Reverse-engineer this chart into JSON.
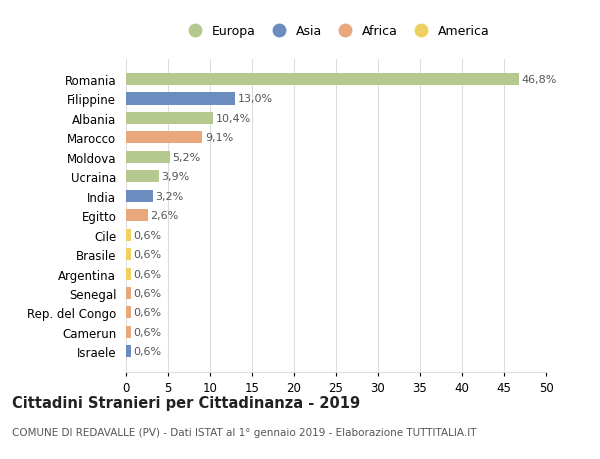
{
  "countries": [
    "Romania",
    "Filippine",
    "Albania",
    "Marocco",
    "Moldova",
    "Ucraina",
    "India",
    "Egitto",
    "Cile",
    "Brasile",
    "Argentina",
    "Senegal",
    "Rep. del Congo",
    "Camerun",
    "Israele"
  ],
  "values": [
    46.8,
    13.0,
    10.4,
    9.1,
    5.2,
    3.9,
    3.2,
    2.6,
    0.6,
    0.6,
    0.6,
    0.6,
    0.6,
    0.6,
    0.6
  ],
  "labels": [
    "46,8%",
    "13,0%",
    "10,4%",
    "9,1%",
    "5,2%",
    "3,9%",
    "3,2%",
    "2,6%",
    "0,6%",
    "0,6%",
    "0,6%",
    "0,6%",
    "0,6%",
    "0,6%",
    "0,6%"
  ],
  "continents": [
    "Europa",
    "Asia",
    "Europa",
    "Africa",
    "Europa",
    "Europa",
    "Asia",
    "Africa",
    "America",
    "America",
    "America",
    "Africa",
    "Africa",
    "Africa",
    "Asia"
  ],
  "colors": {
    "Europa": "#b5c98e",
    "Asia": "#6b8cbf",
    "Africa": "#e8a87c",
    "America": "#f0d060"
  },
  "legend_order": [
    "Europa",
    "Asia",
    "Africa",
    "America"
  ],
  "xlim": [
    0,
    50
  ],
  "xticks": [
    0,
    5,
    10,
    15,
    20,
    25,
    30,
    35,
    40,
    45,
    50
  ],
  "title": "Cittadini Stranieri per Cittadinanza - 2019",
  "subtitle": "COMUNE DI REDAVALLE (PV) - Dati ISTAT al 1° gennaio 2019 - Elaborazione TUTTITALIA.IT",
  "bg_color": "#ffffff",
  "grid_color": "#dddddd",
  "bar_height": 0.62,
  "label_fontsize": 8.0,
  "ytick_fontsize": 8.5,
  "xtick_fontsize": 8.5,
  "title_fontsize": 10.5,
  "subtitle_fontsize": 7.5,
  "legend_fontsize": 9.0
}
